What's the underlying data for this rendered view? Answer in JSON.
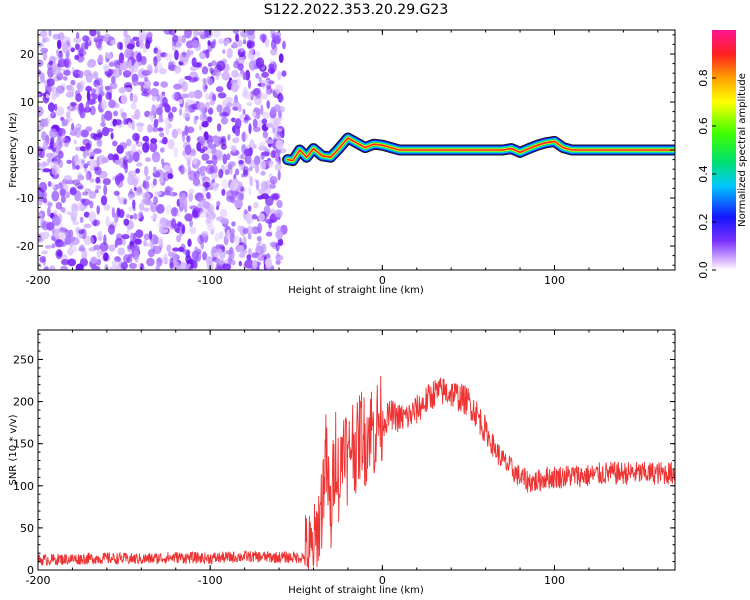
{
  "title": "S122.2022.353.20.29.G23",
  "chart_data": [
    {
      "type": "heatmap",
      "xlabel": "Height of straight line (km)",
      "ylabel": "Frequency (Hz)",
      "xlim": [
        -200,
        170
      ],
      "ylim": [
        -25,
        25
      ],
      "x_ticks": [
        -200,
        -100,
        0,
        100
      ],
      "y_ticks": [
        -20,
        -10,
        0,
        10,
        20
      ],
      "noise_region_x": [
        -200,
        -57
      ],
      "line_region_x": [
        -57,
        170
      ],
      "carrier_frequency_track": {
        "x": [
          -55,
          -52,
          -48,
          -44,
          -40,
          -35,
          -30,
          -26,
          -20,
          -15,
          -10,
          -5,
          0,
          5,
          10,
          20,
          40,
          60,
          70,
          75,
          80,
          85,
          90,
          95,
          100,
          105,
          110,
          130,
          170
        ],
        "y": [
          -2,
          -2.2,
          0,
          -1.5,
          0.3,
          -1.2,
          -1.5,
          0,
          2.5,
          1.5,
          0.5,
          1.2,
          1,
          0.5,
          0,
          0,
          0,
          0,
          0,
          0.3,
          -0.5,
          0.3,
          1,
          1.5,
          1.8,
          0.5,
          0,
          0,
          0
        ]
      },
      "colorbar": {
        "label": "Normalized spectral amplitude",
        "range": [
          0,
          1
        ],
        "ticks": [
          0.0,
          0.2,
          0.4,
          0.6,
          0.8
        ],
        "tick_labels": [
          "0.0",
          "0.2",
          "0.4",
          "0.6",
          "0.8"
        ]
      }
    },
    {
      "type": "line",
      "xlabel": "Height of straight line (km)",
      "ylabel": "SNR (10 * v/v)",
      "xlim": [
        -200,
        170
      ],
      "ylim": [
        0,
        285
      ],
      "x_ticks": [
        -200,
        -100,
        0,
        100
      ],
      "y_ticks": [
        0,
        50,
        100,
        150,
        200,
        250
      ],
      "series": [
        {
          "color": "#ee3333",
          "x": [
            -200,
            -180,
            -160,
            -140,
            -120,
            -100,
            -80,
            -60,
            -45,
            -40,
            -38,
            -35,
            -33,
            -30,
            -27,
            -25,
            -22,
            -20,
            -18,
            -15,
            -12,
            -10,
            -7,
            -5,
            -2,
            0,
            5,
            10,
            15,
            20,
            25,
            30,
            35,
            40,
            45,
            50,
            55,
            60,
            65,
            70,
            75,
            80,
            85,
            90,
            95,
            100,
            110,
            120,
            130,
            140,
            150,
            160,
            170
          ],
          "y": [
            12,
            13,
            14,
            13,
            15,
            14,
            16,
            15,
            15,
            20,
            40,
            80,
            140,
            60,
            150,
            100,
            170,
            120,
            160,
            140,
            170,
            150,
            175,
            160,
            180,
            175,
            185,
            180,
            182,
            190,
            200,
            210,
            212,
            210,
            205,
            200,
            185,
            165,
            145,
            130,
            120,
            110,
            105,
            105,
            110,
            110,
            112,
            112,
            115,
            115,
            115,
            115,
            115
          ]
        }
      ]
    }
  ]
}
